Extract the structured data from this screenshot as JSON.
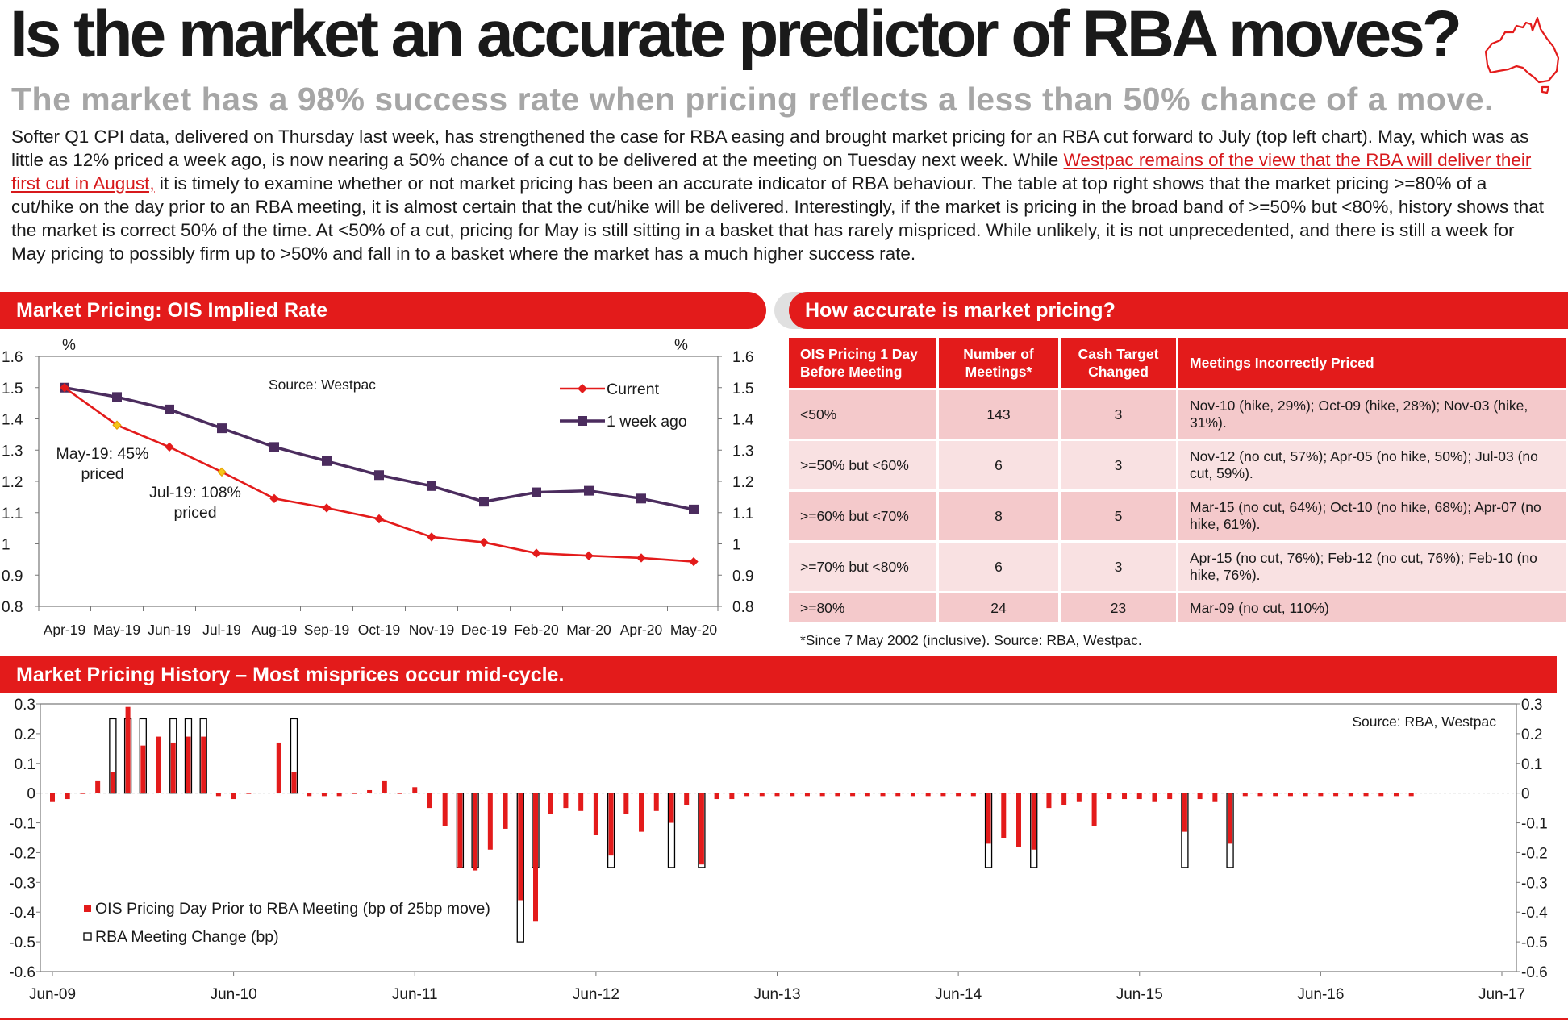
{
  "header": {
    "title": "Is the market an accurate predictor of RBA moves?",
    "subtitle": "The market has a 98% success rate when pricing reflects a less than 50% chance of a move.",
    "intro_1": "Softer Q1 CPI data, delivered on Thursday last week, has strengthened the case for RBA easing and brought market pricing for an RBA cut forward to July (top left chart). May, which was as little as 12% priced a week ago, is now nearing a 50% chance of a cut to be delivered at the meeting on Tuesday next week. While ",
    "intro_link": "Westpac remains of the view that the RBA will deliver their first cut in August,",
    "intro_2": " it is timely to examine whether or not market pricing has been an accurate indicator of RBA behaviour. The table at top right shows that the market pricing >=80% of a cut/hike on the day prior to an RBA meeting, it is almost certain that the cut/hike will be delivered. Interestingly, if the market is pricing in the broad band of >=50% but <80%, history shows that the market is correct 50% of the time. At <50% of a cut, pricing for May is still sitting in a basket that has rarely mispriced. While unlikely, it is not unprecedented, and there is still a week for May pricing to possibly firm up to >50% and fall in to a basket where the market has a much higher success rate."
  },
  "colors": {
    "accent": "#e31b1b",
    "purple": "#4b2c5e",
    "diamond": "#f5c518",
    "band_dark": "#f4c9cb",
    "band_light": "#f9e1e2"
  },
  "panels": {
    "ois_title": "Market Pricing: OIS Implied Rate",
    "table_title": "How accurate is market pricing?",
    "history_title": "Market Pricing History – Most misprices occur mid-cycle."
  },
  "table": {
    "headers": [
      "OIS Pricing 1 Day Before Meeting",
      "Number of Meetings*",
      "Cash Target Changed",
      "Meetings Incorrectly Priced"
    ],
    "rows": [
      {
        "band": "<50%",
        "meetings": "143",
        "changed": "3",
        "incorrect": "Nov-10 (hike, 29%); Oct-09 (hike, 28%); Nov-03 (hike, 31%)."
      },
      {
        "band": ">=50% but <60%",
        "meetings": "6",
        "changed": "3",
        "incorrect": "Nov-12 (no cut, 57%); Apr-05 (no hike, 50%); Jul-03 (no cut, 59%)."
      },
      {
        "band": ">=60% but <70%",
        "meetings": "8",
        "changed": "5",
        "incorrect": "Mar-15 (no cut, 64%); Oct-10 (no hike, 68%); Apr-07 (no hike, 61%)."
      },
      {
        "band": ">=70% but <80%",
        "meetings": "6",
        "changed": "3",
        "incorrect": "Apr-15 (no cut, 76%); Feb-12 (no cut, 76%); Feb-10 (no hike, 76%)."
      },
      {
        "band": ">=80%",
        "meetings": "24",
        "changed": "23",
        "incorrect": "Mar-09 (no cut, 110%)"
      }
    ],
    "note": "*Since 7 May 2002 (inclusive). Source: RBA, Westpac."
  },
  "chart_data": [
    {
      "type": "line",
      "title": "Market Pricing: OIS Implied Rate",
      "source": "Source: Westpac",
      "ylabel_left": "%",
      "ylabel_right": "%",
      "ylim": [
        0.8,
        1.6
      ],
      "yticks": [
        0.8,
        0.9,
        1,
        1.1,
        1.2,
        1.3,
        1.4,
        1.5,
        1.6
      ],
      "ytick_labels": [
        "0.8",
        "0.9",
        "1",
        "1.1",
        "1.2",
        "1.3",
        "1.4",
        "1.5",
        "1.6"
      ],
      "categories": [
        "Apr-19",
        "May-19",
        "Jun-19",
        "Jul-19",
        "Aug-19",
        "Sep-19",
        "Oct-19",
        "Nov-19",
        "Dec-19",
        "Feb-20",
        "Mar-20",
        "Apr-20",
        "May-20"
      ],
      "series": [
        {
          "name": "Current",
          "color": "#e31b1b",
          "marker": "diamond",
          "values": [
            1.5,
            1.38,
            1.31,
            1.23,
            1.145,
            1.115,
            1.08,
            1.022,
            1.005,
            0.97,
            0.962,
            0.955,
            0.943
          ]
        },
        {
          "name": "1 week ago",
          "color": "#4b2c5e",
          "marker": "square",
          "values": [
            1.5,
            1.47,
            1.43,
            1.37,
            1.31,
            1.265,
            1.22,
            1.185,
            1.135,
            1.165,
            1.17,
            1.145,
            1.11
          ]
        }
      ],
      "highlight_points": [
        1,
        3
      ],
      "annotations": [
        {
          "text": "May-19: 45%",
          "text2": "priced"
        },
        {
          "text": "Jul-19: 108%",
          "text2": "priced"
        }
      ]
    },
    {
      "type": "bar",
      "title": "Market Pricing History – Most misprices occur mid-cycle.",
      "source": "Source: RBA, Westpac",
      "ylim": [
        -0.6,
        0.3
      ],
      "yticks": [
        -0.6,
        -0.5,
        -0.4,
        -0.3,
        -0.2,
        -0.1,
        0,
        0.1,
        0.2,
        0.3
      ],
      "ytick_labels": [
        "-0.6",
        "-0.5",
        "-0.4",
        "-0.3",
        "-0.2",
        "-0.1",
        "0",
        "0.1",
        "0.2",
        "0.3"
      ],
      "xtick_labels": [
        "Jun-09",
        "Jun-10",
        "Jun-11",
        "Jun-12",
        "Jun-13",
        "Jun-14",
        "Jun-15",
        "Jun-16",
        "Jun-17"
      ],
      "x_start": "Jun-09",
      "x_months": 96,
      "legend": [
        "OIS Pricing Day Prior to RBA Meeting (bp of 25bp move)",
        "RBA Meeting Change (bp)"
      ],
      "series": [
        {
          "name": "OIS Pricing Day Prior to RBA Meeting (bp of 25bp move)",
          "color": "#e31b1b",
          "points": [
            [
              0,
              -0.03
            ],
            [
              1,
              -0.02
            ],
            [
              2,
              0.0
            ],
            [
              3,
              0.04
            ],
            [
              4,
              0.07
            ],
            [
              5,
              0.29
            ],
            [
              6,
              0.16
            ],
            [
              7,
              0.19
            ],
            [
              8,
              0.17
            ],
            [
              9,
              0.19
            ],
            [
              10,
              0.19
            ],
            [
              11,
              -0.01
            ],
            [
              12,
              -0.02
            ],
            [
              13,
              0.0
            ],
            [
              15,
              0.17
            ],
            [
              16,
              0.07
            ],
            [
              17,
              -0.01
            ],
            [
              18,
              -0.01
            ],
            [
              19,
              -0.01
            ],
            [
              20,
              0.0
            ],
            [
              21,
              0.01
            ],
            [
              22,
              0.04
            ],
            [
              23,
              0.0
            ],
            [
              24,
              0.02
            ],
            [
              25,
              -0.05
            ],
            [
              26,
              -0.11
            ],
            [
              27,
              -0.25
            ],
            [
              28,
              -0.26
            ],
            [
              29,
              -0.19
            ],
            [
              30,
              -0.12
            ],
            [
              31,
              -0.36
            ],
            [
              32,
              -0.43
            ],
            [
              33,
              -0.07
            ],
            [
              34,
              -0.05
            ],
            [
              35,
              -0.06
            ],
            [
              36,
              -0.14
            ],
            [
              37,
              -0.21
            ],
            [
              38,
              -0.07
            ],
            [
              39,
              -0.13
            ],
            [
              40,
              -0.06
            ],
            [
              41,
              -0.1
            ],
            [
              42,
              -0.04
            ],
            [
              43,
              -0.24
            ],
            [
              44,
              -0.02
            ],
            [
              45,
              -0.02
            ],
            [
              46,
              -0.01
            ],
            [
              47,
              -0.01
            ],
            [
              48,
              -0.01
            ],
            [
              49,
              -0.01
            ],
            [
              50,
              -0.01
            ],
            [
              51,
              -0.01
            ],
            [
              52,
              -0.01
            ],
            [
              53,
              -0.01
            ],
            [
              54,
              -0.01
            ],
            [
              55,
              -0.01
            ],
            [
              56,
              -0.01
            ],
            [
              57,
              -0.01
            ],
            [
              58,
              -0.01
            ],
            [
              59,
              -0.01
            ],
            [
              60,
              -0.01
            ],
            [
              61,
              -0.01
            ],
            [
              62,
              -0.17
            ],
            [
              63,
              -0.15
            ],
            [
              64,
              -0.18
            ],
            [
              65,
              -0.19
            ],
            [
              66,
              -0.05
            ],
            [
              67,
              -0.04
            ],
            [
              68,
              -0.03
            ],
            [
              69,
              -0.11
            ],
            [
              70,
              -0.02
            ],
            [
              71,
              -0.02
            ],
            [
              72,
              -0.02
            ],
            [
              73,
              -0.03
            ],
            [
              74,
              -0.02
            ],
            [
              75,
              -0.13
            ],
            [
              76,
              -0.02
            ],
            [
              77,
              -0.03
            ],
            [
              78,
              -0.17
            ],
            [
              79,
              -0.01
            ],
            [
              80,
              -0.01
            ],
            [
              81,
              -0.01
            ],
            [
              82,
              -0.01
            ],
            [
              83,
              -0.01
            ],
            [
              84,
              -0.01
            ],
            [
              85,
              -0.01
            ],
            [
              86,
              -0.01
            ],
            [
              87,
              -0.01
            ],
            [
              88,
              -0.01
            ],
            [
              89,
              -0.01
            ],
            [
              90,
              -0.01
            ]
          ]
        },
        {
          "name": "RBA Meeting Change (bp)",
          "color": "#ffffff",
          "points": [
            [
              4,
              0.25
            ],
            [
              5,
              0.25
            ],
            [
              6,
              0.25
            ],
            [
              8,
              0.25
            ],
            [
              9,
              0.25
            ],
            [
              10,
              0.25
            ],
            [
              16,
              0.25
            ],
            [
              27,
              -0.25
            ],
            [
              28,
              -0.25
            ],
            [
              31,
              -0.5
            ],
            [
              32,
              -0.25
            ],
            [
              37,
              -0.25
            ],
            [
              41,
              -0.25
            ],
            [
              43,
              -0.25
            ],
            [
              62,
              -0.25
            ],
            [
              65,
              -0.25
            ],
            [
              75,
              -0.25
            ],
            [
              78,
              -0.25
            ]
          ]
        }
      ]
    }
  ]
}
